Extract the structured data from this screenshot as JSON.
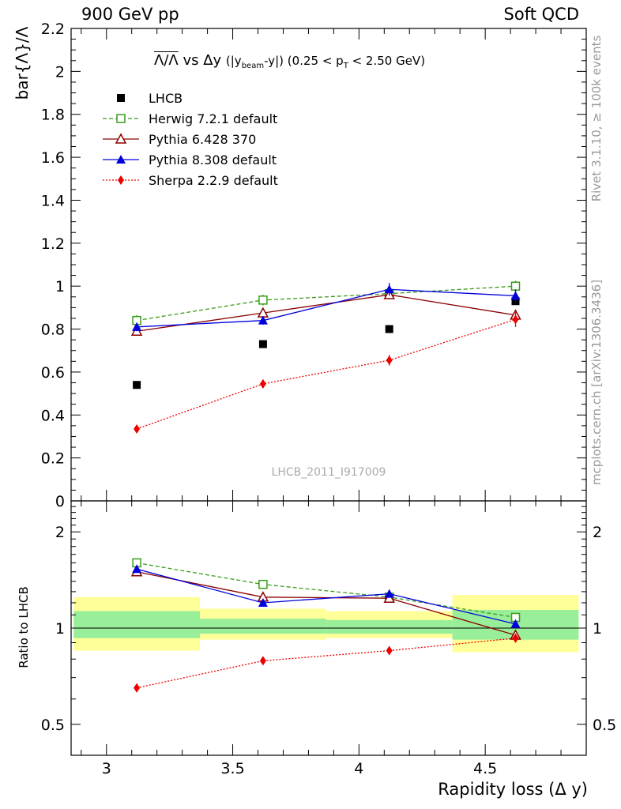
{
  "header": {
    "left": "900 GeV pp",
    "right": "Soft QCD"
  },
  "side_text": {
    "top": "Rivet 3.1.10, ≥ 100k events",
    "bottom": "mcplots.cern.ch [arXiv:1306.3436]"
  },
  "colors": {
    "lhcb": "#000000",
    "herwig": "#3a9b1a",
    "pythia6": "#8b0000",
    "pythia8": "#0000dd",
    "sherpa": "#ee0000",
    "band_inner": "#99ee99",
    "band_outer": "#ffff99"
  },
  "chart_data": [
    {
      "type": "scatter",
      "panel": "main",
      "title_parts": {
        "ratio": "Λ/Λ",
        "vs": "vs",
        "dy": "Δy",
        "paren_open": "(|y",
        "beam_sub": "beam",
        "paren_mid": "-y|)",
        "pt_open": "(0.25 < p",
        "pt_sub": "T",
        "pt_close": "< 2.50 GeV)"
      },
      "ylabel": "bar{Λ}/Λ",
      "ylim": [
        0,
        2.2
      ],
      "yticks": [
        0,
        0.2,
        0.4,
        0.6,
        0.8,
        1,
        1.2,
        1.4,
        1.6,
        1.8,
        2,
        2.2
      ],
      "ytick_labels": [
        "0",
        "0.2",
        "0.4",
        "0.6",
        "0.8",
        "1",
        "1.2",
        "1.4",
        "1.6",
        "1.8",
        "2",
        "2.2"
      ],
      "xlim": [
        2.86,
        4.9
      ],
      "watermark": "LHCB_2011_I917009",
      "legend_position": "top-left",
      "x": [
        3.12,
        3.62,
        4.12,
        4.62
      ],
      "series": [
        {
          "name": "LHCB",
          "key": "lhcb",
          "marker": "square-filled",
          "line": "none",
          "values": [
            0.54,
            0.73,
            0.8,
            0.93
          ],
          "errors": [
            0.01,
            0.01,
            0.01,
            0.01
          ]
        },
        {
          "name": "Herwig 7.2.1 default",
          "key": "herwig",
          "marker": "square-open",
          "line": "dashed",
          "values": [
            0.84,
            0.935,
            0.965,
            1.0
          ],
          "errors": [
            0.025,
            0.025,
            0.025,
            0.025
          ]
        },
        {
          "name": "Pythia 6.428 370",
          "key": "pythia6",
          "marker": "triangle-open",
          "line": "solid",
          "values": [
            0.79,
            0.875,
            0.96,
            0.865
          ],
          "errors": [
            0.02,
            0.02,
            0.02,
            0.02
          ]
        },
        {
          "name": "Pythia 8.308 default",
          "key": "pythia8",
          "marker": "triangle-filled",
          "line": "solid",
          "values": [
            0.81,
            0.84,
            0.985,
            0.955
          ],
          "errors": [
            0.02,
            0.02,
            0.03,
            0.03
          ]
        },
        {
          "name": "Sherpa 2.2.9 default",
          "key": "sherpa",
          "marker": "diamond-filled",
          "line": "dotted",
          "values": [
            0.335,
            0.545,
            0.655,
            0.845
          ],
          "errors": [
            0.015,
            0.02,
            0.025,
            0.035
          ]
        }
      ]
    },
    {
      "type": "scatter",
      "panel": "ratio",
      "ylabel": "Ratio to LHCB",
      "xlabel": "Rapidity loss (Δ y)",
      "yscale": "log",
      "ylim": [
        0.4,
        2.5
      ],
      "yticks": [
        0.5,
        1,
        2
      ],
      "ytick_labels": [
        "0.5",
        "1",
        "2"
      ],
      "xlim": [
        2.86,
        4.9
      ],
      "xticks": [
        3,
        3.5,
        4,
        4.5
      ],
      "xtick_labels": [
        "3",
        "3.5",
        "4",
        "4.5"
      ],
      "x": [
        3.12,
        3.62,
        4.12,
        4.62
      ],
      "bands": [
        {
          "x_range": [
            2.87,
            3.37
          ],
          "inner": [
            0.93,
            1.13
          ],
          "outer": [
            0.85,
            1.25
          ]
        },
        {
          "x_range": [
            3.37,
            3.87
          ],
          "inner": [
            0.96,
            1.07
          ],
          "outer": [
            0.92,
            1.15
          ]
        },
        {
          "x_range": [
            3.87,
            4.37
          ],
          "inner": [
            0.96,
            1.06
          ],
          "outer": [
            0.93,
            1.13
          ]
        },
        {
          "x_range": [
            4.37,
            4.87
          ],
          "inner": [
            0.92,
            1.14
          ],
          "outer": [
            0.84,
            1.27
          ]
        }
      ],
      "series": [
        {
          "key": "herwig",
          "marker": "square-open",
          "line": "dashed",
          "values": [
            1.6,
            1.37,
            1.25,
            1.08
          ],
          "errors": [
            0.04,
            0.03,
            0.03,
            0.02
          ]
        },
        {
          "key": "pythia6",
          "marker": "triangle-open",
          "line": "solid",
          "values": [
            1.5,
            1.25,
            1.24,
            0.95
          ],
          "errors": [
            0.03,
            0.03,
            0.03,
            0.02
          ]
        },
        {
          "key": "pythia8",
          "marker": "triangle-filled",
          "line": "solid",
          "values": [
            1.53,
            1.2,
            1.28,
            1.03
          ],
          "errors": [
            0.03,
            0.02,
            0.03,
            0.02
          ]
        },
        {
          "key": "sherpa",
          "marker": "diamond-filled",
          "line": "dotted",
          "values": [
            0.65,
            0.79,
            0.85,
            0.93
          ],
          "errors": [
            0.02,
            0.02,
            0.02,
            0.03
          ]
        }
      ]
    }
  ]
}
